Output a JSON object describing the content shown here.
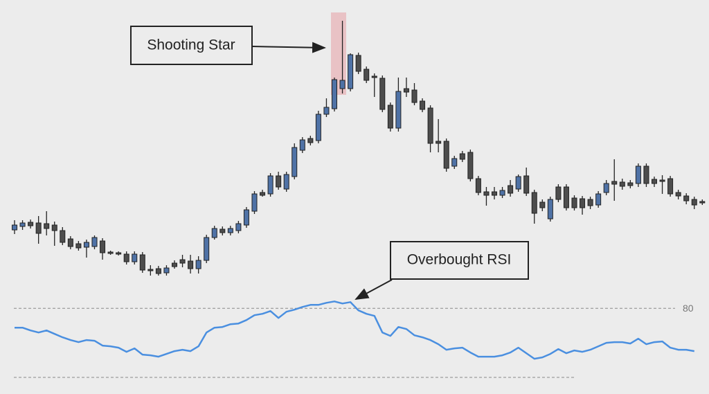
{
  "chart_data": [
    {
      "type": "candlestick",
      "annotation": "Shooting Star",
      "up_color": "#4f72a6",
      "down_color": "#4d4d4d",
      "ylim": [
        0,
        420
      ],
      "open": [
        88,
        93,
        99,
        98,
        97,
        95,
        87,
        75,
        68,
        63,
        64,
        72,
        56,
        55,
        53,
        42,
        52,
        31,
        32,
        26,
        40,
        45,
        43,
        32,
        44,
        77,
        89,
        84,
        87,
        95,
        115,
        142,
        140,
        166,
        147,
        165,
        203,
        220,
        217,
        255,
        263,
        292,
        292,
        340,
        320,
        310,
        307,
        268,
        235,
        292,
        290,
        274,
        264,
        216,
        216,
        180,
        198,
        200,
        162,
        143,
        143,
        138,
        152,
        147,
        166,
        142,
        128,
        104,
        150,
        150,
        134,
        133,
        132,
        124,
        142,
        158,
        157,
        156,
        155,
        180,
        161,
        160,
        162,
        142,
        137,
        132,
        129
      ],
      "high": [
        102,
        102,
        103,
        108,
        115,
        100,
        92,
        79,
        72,
        74,
        80,
        76,
        58,
        57,
        57,
        57,
        56,
        37,
        36,
        37,
        44,
        52,
        52,
        50,
        81,
        94,
        93,
        94,
        101,
        121,
        144,
        146,
        170,
        172,
        172,
        213,
        222,
        224,
        260,
        278,
        308,
        390,
        343,
        344,
        324,
        314,
        311,
        272,
        308,
        308,
        300,
        278,
        268,
        248,
        220,
        195,
        202,
        204,
        166,
        150,
        150,
        150,
        160,
        168,
        178,
        146,
        132,
        136,
        154,
        154,
        138,
        137,
        136,
        144,
        160,
        190,
        162,
        160,
        184,
        184,
        165,
        167,
        166,
        146,
        141,
        136,
        132
      ],
      "low": [
        82,
        88,
        90,
        68,
        80,
        65,
        66,
        60,
        58,
        48,
        60,
        45,
        52,
        51,
        38,
        38,
        26,
        22,
        22,
        22,
        32,
        34,
        25,
        25,
        40,
        74,
        80,
        80,
        83,
        91,
        111,
        136,
        136,
        146,
        143,
        161,
        199,
        210,
        213,
        251,
        259,
        285,
        288,
        313,
        300,
        280,
        258,
        230,
        230,
        280,
        268,
        258,
        200,
        200,
        172,
        176,
        186,
        158,
        138,
        123,
        132,
        134,
        136,
        143,
        137,
        97,
        115,
        100,
        128,
        116,
        116,
        110,
        118,
        120,
        138,
        130,
        146,
        148,
        150,
        150,
        150,
        140,
        136,
        132,
        125,
        118,
        124
      ],
      "close": [
        95,
        98,
        94,
        83,
        90,
        87,
        70,
        64,
        62,
        70,
        77,
        55,
        54,
        53,
        42,
        53,
        30,
        29,
        25,
        33,
        35,
        40,
        32,
        44,
        77,
        90,
        84,
        90,
        97,
        117,
        140,
        138,
        166,
        150,
        168,
        207,
        218,
        214,
        255,
        265,
        305,
        304,
        341,
        317,
        304,
        308,
        262,
        235,
        288,
        287,
        272,
        262,
        213,
        213,
        177,
        191,
        190,
        162,
        142,
        138,
        138,
        145,
        141,
        165,
        141,
        112,
        120,
        132,
        132,
        120,
        120,
        120,
        123,
        140,
        155,
        154,
        151,
        152,
        180,
        155,
        155,
        158,
        140,
        137,
        130,
        124,
        127
      ]
    },
    {
      "type": "line",
      "annotation": "Overbought RSI",
      "ylim": [
        20,
        100
      ],
      "reference_lines": [
        {
          "value": 80,
          "label": "80"
        },
        {
          "value": 20
        }
      ],
      "series": [
        {
          "color": "#4a8fe0",
          "values": [
            63.2,
            63.2,
            60.8,
            59,
            60.8,
            57.8,
            54.8,
            52.4,
            50.6,
            52.4,
            51.8,
            47.6,
            47,
            45.8,
            42.2,
            45.2,
            39.8,
            39.2,
            38,
            40.4,
            42.8,
            44,
            42.8,
            47,
            59,
            63.2,
            63.8,
            66.2,
            66.8,
            69.8,
            74,
            75.2,
            77.6,
            71.6,
            77,
            78.8,
            81.2,
            83,
            83,
            84.8,
            86,
            84.2,
            85.4,
            78.2,
            75.2,
            73.4,
            59,
            56,
            63.8,
            62,
            56.6,
            54.8,
            52.4,
            48.8,
            44,
            45.2,
            45.8,
            41.6,
            38,
            38,
            38,
            39.2,
            41.6,
            45.8,
            41,
            36.2,
            37.4,
            40.4,
            44.6,
            41,
            43.4,
            42.2,
            44,
            47,
            50,
            50.6,
            50.6,
            49.4,
            53.6,
            48.8,
            50.6,
            51.2,
            45.8,
            44,
            44,
            42.8,
            null
          ]
        }
      ]
    }
  ]
}
